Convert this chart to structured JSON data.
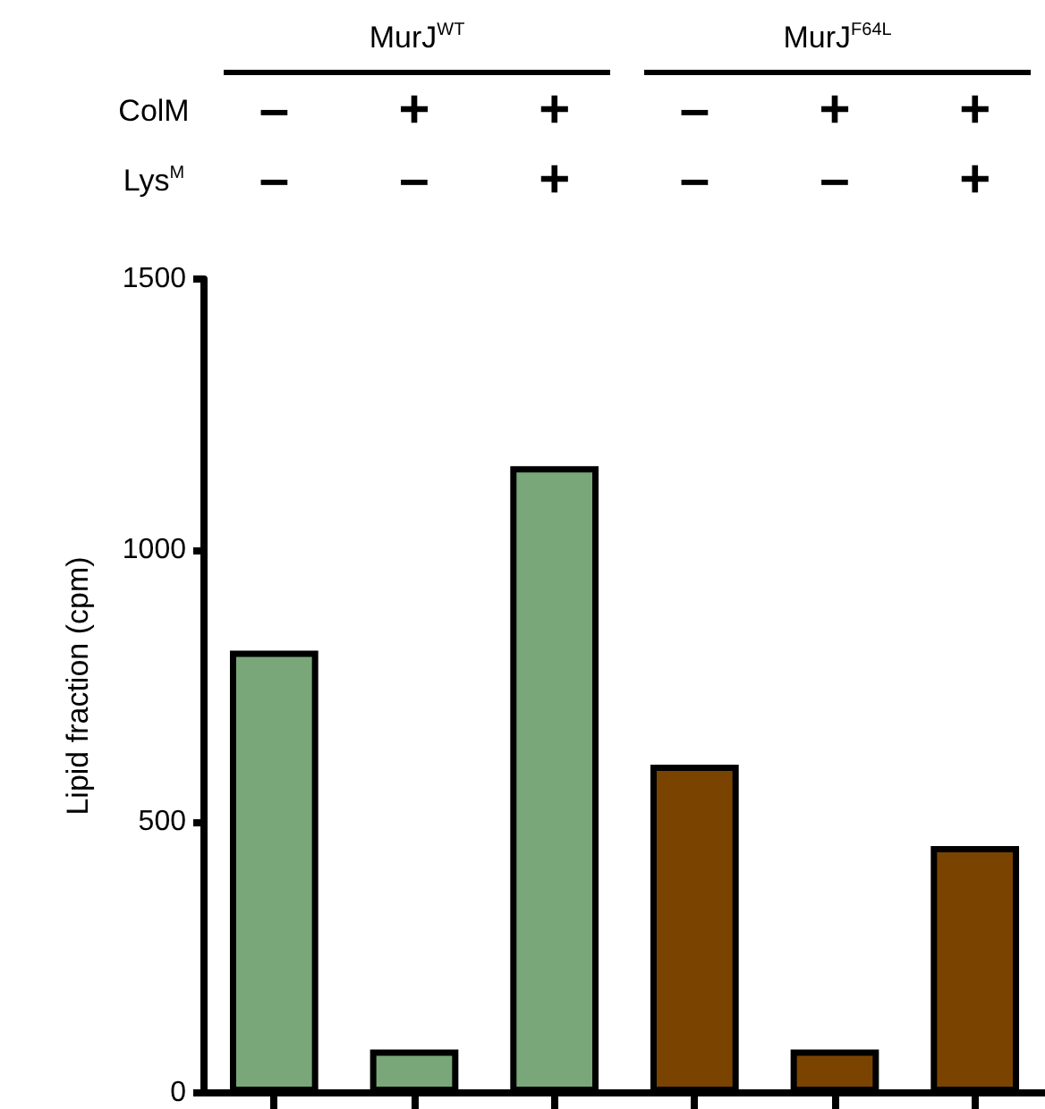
{
  "chart_data": {
    "type": "bar",
    "ylabel": "Lipid fraction (cpm)",
    "categories": [
      null,
      null,
      null,
      null,
      null,
      null
    ],
    "values": [
      815,
      80,
      1155,
      605,
      80,
      455
    ],
    "colors": [
      "#79a779",
      "#79a779",
      "#79a779",
      "#7a4300",
      "#7a4300",
      "#7a4300"
    ],
    "ylim": [
      0,
      1500
    ],
    "yticks": [
      0,
      500,
      1000,
      1500
    ],
    "grid": false,
    "tick_labels": "y",
    "annotations": [
      "MurJ$^{WT}$",
      "MurJ$^{F64L}$",
      "ColM",
      "–",
      "+",
      "+",
      "–",
      "+",
      "+",
      "Lys$^{M}$",
      "–",
      "–",
      "+",
      "–",
      "–",
      "+"
    ]
  }
}
